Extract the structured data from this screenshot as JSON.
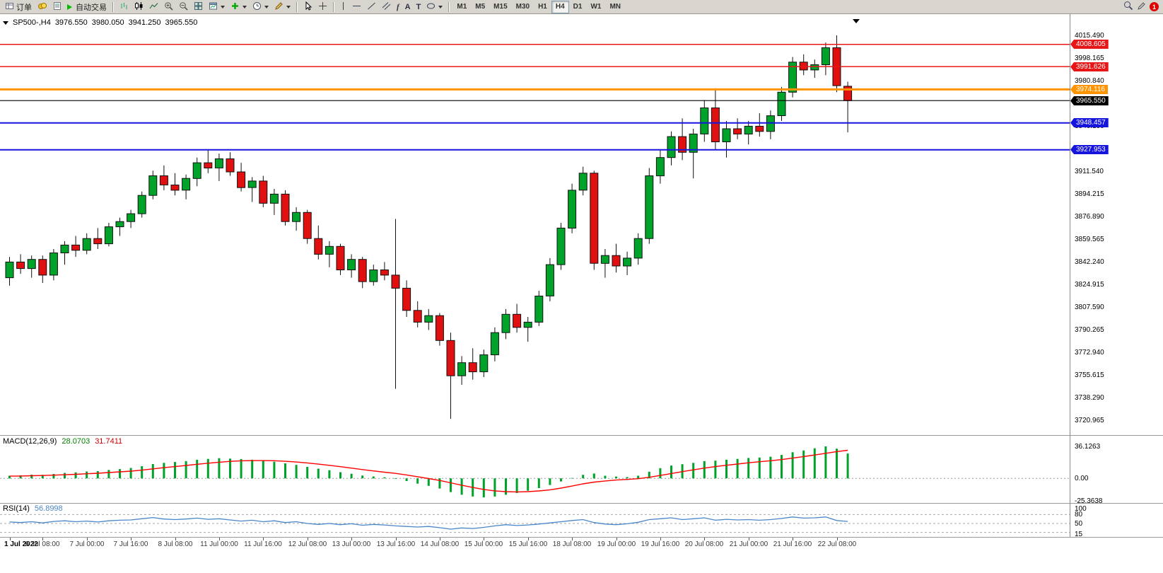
{
  "toolbar": {
    "orders_label": "订单",
    "autotrade_label": "自动交易",
    "notification_count": "1",
    "timeframes": [
      "M1",
      "M5",
      "M15",
      "M30",
      "H1",
      "H4",
      "D1",
      "W1",
      "MN"
    ],
    "active_timeframe": "H4",
    "glyphs": {
      "fibonacci": "f",
      "text": "A",
      "label": "T"
    },
    "icon_names": [
      "orders-icon",
      "coins-icon",
      "report-icon",
      "autotrade-play-icon",
      "bar-chart-icon",
      "candlestick-chart-icon",
      "line-chart-icon",
      "zoom-in-icon",
      "zoom-out-icon",
      "tile-windows-icon",
      "new-chart-icon",
      "add-indicator-icon",
      "periods-clock-icon",
      "template-icon",
      "cursor-icon",
      "crosshair-icon",
      "vertical-line-icon",
      "horizontal-line-icon",
      "trendline-icon",
      "channel-icon",
      "fibonacci-icon",
      "text-icon",
      "label-icon",
      "shapes-icon",
      "search-icon",
      "edit-icon",
      "notification-badge"
    ]
  },
  "colors": {
    "up": "#00a32a",
    "down": "#e01010",
    "wick": "#111111",
    "macd_hist": "#00a32a",
    "macd_signal": "#ff0000",
    "rsi_line": "#4a86c8",
    "level_red": "#e81717",
    "level_orange": "#ff9400",
    "level_blue": "#1515dd",
    "level_black": "#000000"
  },
  "chart_data": {
    "type": "candlestick",
    "title": "SP500-,H4",
    "ohlc_display": {
      "open": "3976.550",
      "high": "3980.050",
      "low": "3941.250",
      "close": "3965.550"
    },
    "candles": [
      [
        3830,
        3846,
        3824,
        3842
      ],
      [
        3842,
        3848,
        3833,
        3837
      ],
      [
        3837,
        3847,
        3830,
        3844
      ],
      [
        3844,
        3847,
        3826,
        3832
      ],
      [
        3832,
        3852,
        3828,
        3849
      ],
      [
        3849,
        3858,
        3840,
        3855
      ],
      [
        3855,
        3862,
        3846,
        3851
      ],
      [
        3851,
        3864,
        3848,
        3860
      ],
      [
        3860,
        3868,
        3852,
        3856
      ],
      [
        3856,
        3872,
        3854,
        3869
      ],
      [
        3869,
        3876,
        3862,
        3873
      ],
      [
        3873,
        3882,
        3868,
        3879
      ],
      [
        3879,
        3896,
        3876,
        3893
      ],
      [
        3893,
        3912,
        3890,
        3908
      ],
      [
        3908,
        3916,
        3897,
        3901
      ],
      [
        3901,
        3910,
        3893,
        3897
      ],
      [
        3897,
        3909,
        3890,
        3906
      ],
      [
        3906,
        3922,
        3900,
        3918
      ],
      [
        3918,
        3928,
        3910,
        3914
      ],
      [
        3914,
        3925,
        3904,
        3921
      ],
      [
        3921,
        3926,
        3908,
        3911
      ],
      [
        3911,
        3918,
        3896,
        3899
      ],
      [
        3899,
        3907,
        3888,
        3904
      ],
      [
        3904,
        3908,
        3884,
        3887
      ],
      [
        3887,
        3898,
        3878,
        3894
      ],
      [
        3894,
        3897,
        3870,
        3873
      ],
      [
        3873,
        3884,
        3866,
        3880
      ],
      [
        3880,
        3882,
        3856,
        3860
      ],
      [
        3860,
        3870,
        3844,
        3848
      ],
      [
        3848,
        3858,
        3838,
        3854
      ],
      [
        3854,
        3856,
        3832,
        3836
      ],
      [
        3836,
        3848,
        3830,
        3844
      ],
      [
        3844,
        3846,
        3822,
        3827
      ],
      [
        3827,
        3840,
        3824,
        3836
      ],
      [
        3836,
        3842,
        3828,
        3832
      ],
      [
        3832,
        3875,
        3745,
        3822
      ],
      [
        3822,
        3828,
        3800,
        3805
      ],
      [
        3805,
        3812,
        3792,
        3796
      ],
      [
        3796,
        3806,
        3790,
        3801
      ],
      [
        3801,
        3803,
        3778,
        3782
      ],
      [
        3782,
        3788,
        3722,
        3755
      ],
      [
        3755,
        3770,
        3748,
        3765
      ],
      [
        3765,
        3776,
        3752,
        3758
      ],
      [
        3758,
        3775,
        3754,
        3771
      ],
      [
        3771,
        3792,
        3766,
        3788
      ],
      [
        3788,
        3806,
        3783,
        3802
      ],
      [
        3802,
        3810,
        3788,
        3792
      ],
      [
        3792,
        3800,
        3781,
        3796
      ],
      [
        3796,
        3820,
        3793,
        3816
      ],
      [
        3816,
        3845,
        3812,
        3840
      ],
      [
        3840,
        3872,
        3836,
        3868
      ],
      [
        3868,
        3902,
        3864,
        3897
      ],
      [
        3897,
        3915,
        3893,
        3910
      ],
      [
        3910,
        3912,
        3836,
        3841
      ],
      [
        3841,
        3852,
        3830,
        3847
      ],
      [
        3847,
        3856,
        3834,
        3839
      ],
      [
        3839,
        3850,
        3832,
        3845
      ],
      [
        3845,
        3864,
        3840,
        3860
      ],
      [
        3860,
        3914,
        3856,
        3908
      ],
      [
        3908,
        3928,
        3902,
        3922
      ],
      [
        3922,
        3942,
        3916,
        3938
      ],
      [
        3938,
        3952,
        3920,
        3926
      ],
      [
        3926,
        3944,
        3906,
        3940
      ],
      [
        3940,
        3966,
        3934,
        3960
      ],
      [
        3960,
        3975,
        3928,
        3934
      ],
      [
        3934,
        3950,
        3922,
        3944
      ],
      [
        3944,
        3952,
        3936,
        3940
      ],
      [
        3940,
        3950,
        3932,
        3946
      ],
      [
        3946,
        3956,
        3938,
        3942
      ],
      [
        3942,
        3958,
        3936,
        3954
      ],
      [
        3954,
        3976,
        3950,
        3972
      ],
      [
        3972,
        3999,
        3968,
        3995
      ],
      [
        3995,
        4001,
        3985,
        3989
      ],
      [
        3989,
        3997,
        3983,
        3993
      ],
      [
        3993,
        4010,
        3985,
        4006
      ],
      [
        4006,
        4015.5,
        3972,
        3977
      ],
      [
        3976.55,
        3980.05,
        3941.25,
        3965.55
      ]
    ],
    "time_labels": [
      {
        "index": 0,
        "label": "1 Jul 2022"
      },
      {
        "index": 3,
        "label": "6 Jul 08:00"
      },
      {
        "index": 7,
        "label": "7 Jul 00:00"
      },
      {
        "index": 11,
        "label": "7 Jul 16:00"
      },
      {
        "index": 15,
        "label": "8 Jul 08:00"
      },
      {
        "index": 19,
        "label": "11 Jul 00:00"
      },
      {
        "index": 23,
        "label": "11 Jul 16:00"
      },
      {
        "index": 27,
        "label": "12 Jul 08:00"
      },
      {
        "index": 31,
        "label": "13 Jul 00:00"
      },
      {
        "index": 35,
        "label": "13 Jul 16:00"
      },
      {
        "index": 39,
        "label": "14 Jul 08:00"
      },
      {
        "index": 43,
        "label": "15 Jul 00:00"
      },
      {
        "index": 47,
        "label": "15 Jul 16:00"
      },
      {
        "index": 51,
        "label": "18 Jul 08:00"
      },
      {
        "index": 55,
        "label": "19 Jul 00:00"
      },
      {
        "index": 59,
        "label": "19 Jul 16:00"
      },
      {
        "index": 63,
        "label": "20 Jul 08:00"
      },
      {
        "index": 67,
        "label": "21 Jul 00:00"
      },
      {
        "index": 71,
        "label": "21 Jul 16:00"
      },
      {
        "index": 75,
        "label": "22 Jul 08:00"
      }
    ],
    "price_scale": {
      "labels": [
        "4015.490",
        "3998.165",
        "3980.840",
        "3963.515",
        "3946.190",
        "3928.865",
        "3911.540",
        "3894.215",
        "3876.890",
        "3859.565",
        "3842.240",
        "3824.915",
        "3807.590",
        "3790.265",
        "3772.940",
        "3755.615",
        "3738.290",
        "3720.965"
      ]
    },
    "levels": [
      {
        "price": 4008.605,
        "label": "4008.605",
        "color": "#e81717",
        "width": 1.5
      },
      {
        "price": 3991.626,
        "label": "3991.626",
        "color": "#e81717",
        "width": 1.5
      },
      {
        "price": 3974.116,
        "label": "3974.116",
        "color": "#ff9400",
        "width": 3
      },
      {
        "price": 3965.55,
        "label": "3965.550",
        "color": "#000000",
        "width": 1.2
      },
      {
        "price": 3948.457,
        "label": "3948.457",
        "color": "#1515dd",
        "width": 2
      },
      {
        "price": 3927.953,
        "label": "3927.953",
        "color": "#1515dd",
        "width": 2
      }
    ],
    "macd": {
      "name": "MACD(12,26,9)",
      "main_value": "28.0703",
      "signal_value": "31.7411",
      "scale_labels": [
        "36.1263",
        "0.00",
        "-25.3638"
      ],
      "hist": [
        3.0,
        3.5,
        4.2,
        4.0,
        5.0,
        6.2,
        6.8,
        7.8,
        8.2,
        9.5,
        10.5,
        11.8,
        13.8,
        16.2,
        17.5,
        18.5,
        19.5,
        21.0,
        22.0,
        22.8,
        22.3,
        21.8,
        21.0,
        19.8,
        18.8,
        17.0,
        15.2,
        13.0,
        11.0,
        9.2,
        7.0,
        5.2,
        3.2,
        2.2,
        1.2,
        0.0,
        -3.0,
        -6.0,
        -8.5,
        -11.5,
        -15.5,
        -18.5,
        -20.5,
        -21.5,
        -20.5,
        -18.5,
        -16.5,
        -14.0,
        -11.0,
        -7.5,
        -3.5,
        0.5,
        4.0,
        5.5,
        3.0,
        2.0,
        1.5,
        3.0,
        7.5,
        11.5,
        14.5,
        16.0,
        17.5,
        19.5,
        20.0,
        21.0,
        22.0,
        23.0,
        23.5,
        24.5,
        26.5,
        29.5,
        31.5,
        34.0,
        36.1,
        33.5,
        28.07
      ],
      "signal": [
        2.5,
        2.7,
        3.0,
        3.2,
        3.6,
        4.1,
        4.6,
        5.2,
        5.8,
        6.6,
        7.4,
        8.2,
        9.3,
        10.7,
        12.1,
        13.3,
        14.6,
        15.9,
        17.1,
        18.2,
        19.2,
        19.8,
        20.1,
        20.1,
        19.9,
        19.3,
        18.5,
        17.4,
        16.1,
        14.7,
        13.2,
        11.6,
        9.9,
        8.4,
        7.0,
        5.6,
        3.9,
        1.9,
        -0.2,
        -2.4,
        -5.0,
        -7.7,
        -10.3,
        -12.5,
        -14.1,
        -15.0,
        -15.3,
        -15.0,
        -14.2,
        -12.9,
        -11.0,
        -8.7,
        -6.2,
        -4.2,
        -2.9,
        -1.9,
        -1.2,
        -0.4,
        1.2,
        3.3,
        5.5,
        7.6,
        9.6,
        11.6,
        13.3,
        14.8,
        16.2,
        17.6,
        18.8,
        19.9,
        21.2,
        22.9,
        24.6,
        26.4,
        28.3,
        30.2,
        31.74
      ]
    },
    "rsi": {
      "name": "RSI(14)",
      "value": "56.8998",
      "scale_labels": [
        "100",
        "80",
        "50",
        "15"
      ],
      "levels": [
        80,
        50,
        20
      ],
      "values": [
        55,
        53,
        56,
        52,
        57,
        59,
        56,
        58,
        55,
        59,
        61,
        62,
        66,
        70,
        65,
        63,
        65,
        68,
        64,
        66,
        62,
        58,
        61,
        56,
        59,
        53,
        56,
        50,
        47,
        50,
        46,
        49,
        44,
        47,
        45,
        42,
        40,
        38,
        40,
        36,
        31,
        35,
        33,
        37,
        42,
        46,
        43,
        45,
        48,
        52,
        56,
        60,
        63,
        53,
        48,
        46,
        49,
        54,
        63,
        66,
        69,
        63,
        66,
        69,
        61,
        64,
        62,
        63,
        61,
        63,
        67,
        72,
        68,
        69,
        72,
        60,
        56.9
      ]
    }
  }
}
